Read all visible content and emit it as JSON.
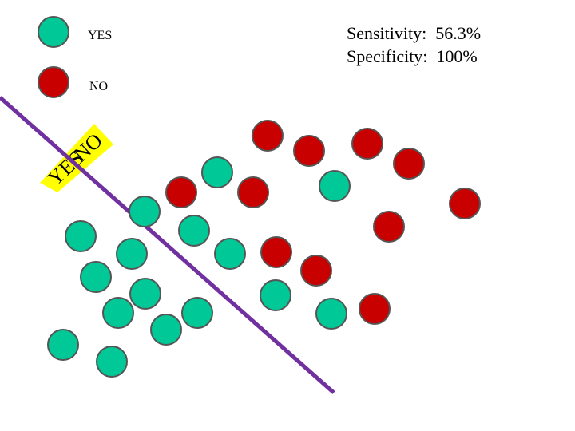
{
  "colors": {
    "yes": "#00c896",
    "no": "#c80000",
    "boundary": "#7030a0",
    "tag_background": "#ffff00"
  },
  "legend": [
    {
      "label": "YES",
      "color": "#00c896"
    },
    {
      "label": "NO",
      "color": "#c80000"
    }
  ],
  "metrics": {
    "sensitivity": "Sensitivity:  56.3%",
    "specificity": "Specificity:  100%"
  },
  "boundary_tag": {
    "yes_side": "YES",
    "no_side": "NO"
  },
  "points": {
    "yes_count": 16,
    "no_count": 11,
    "true_positive_count": 9,
    "false_negative_count": 7,
    "true_negative_count": 11,
    "false_positive_count": 0
  }
}
